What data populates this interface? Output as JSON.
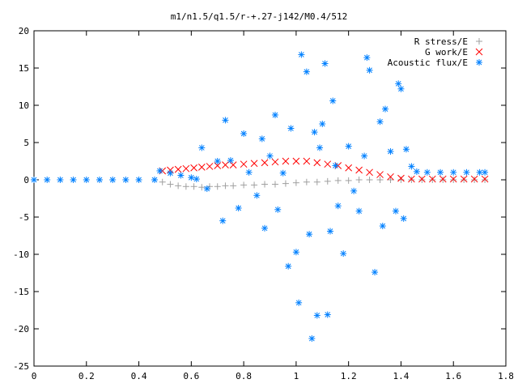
{
  "chart_data": {
    "type": "scatter",
    "title": "m1/n1.5/q1.5/r-+.27-j142/M0.4/512",
    "xlabel": "",
    "ylabel": "",
    "xlim": [
      0,
      1.8
    ],
    "ylim": [
      -25,
      20
    ],
    "x_ticks": [
      "0",
      "0.2",
      "0.4",
      "0.6",
      "0.8",
      "1",
      "1.2",
      "1.4",
      "1.6",
      "1.8"
    ],
    "y_ticks": [
      "20",
      "15",
      "10",
      "5",
      "0",
      "-5",
      "-10",
      "-15",
      "-20",
      "-25"
    ],
    "grid": false,
    "legend_position": "top-right",
    "series": [
      {
        "name": "R stress/E",
        "marker": "plus",
        "color": "#a0a0a0",
        "points": [
          [
            0.49,
            -0.3
          ],
          [
            0.52,
            -0.6
          ],
          [
            0.55,
            -0.8
          ],
          [
            0.58,
            -0.9
          ],
          [
            0.61,
            -0.9
          ],
          [
            0.64,
            -1.0
          ],
          [
            0.67,
            -0.9
          ],
          [
            0.7,
            -0.9
          ],
          [
            0.73,
            -0.8
          ],
          [
            0.76,
            -0.8
          ],
          [
            0.8,
            -0.7
          ],
          [
            0.84,
            -0.7
          ],
          [
            0.88,
            -0.6
          ],
          [
            0.92,
            -0.6
          ],
          [
            0.96,
            -0.5
          ],
          [
            1.0,
            -0.4
          ],
          [
            1.04,
            -0.3
          ],
          [
            1.08,
            -0.3
          ],
          [
            1.12,
            -0.2
          ],
          [
            1.16,
            -0.1
          ],
          [
            1.2,
            -0.1
          ],
          [
            1.24,
            0.0
          ],
          [
            1.28,
            0.0
          ],
          [
            1.32,
            0.0
          ],
          [
            1.36,
            0.0
          ],
          [
            1.4,
            0.0
          ],
          [
            1.44,
            0.0
          ],
          [
            1.48,
            0.0
          ],
          [
            1.52,
            0.0
          ],
          [
            1.56,
            0.0
          ],
          [
            1.6,
            0.0
          ],
          [
            1.64,
            0.0
          ],
          [
            1.68,
            0.0
          ],
          [
            1.72,
            0.0
          ]
        ]
      },
      {
        "name": "G work/E",
        "marker": "cross",
        "color": "#ff0000",
        "points": [
          [
            0.49,
            1.2
          ],
          [
            0.52,
            1.3
          ],
          [
            0.55,
            1.4
          ],
          [
            0.58,
            1.5
          ],
          [
            0.61,
            1.6
          ],
          [
            0.64,
            1.7
          ],
          [
            0.67,
            1.8
          ],
          [
            0.7,
            1.9
          ],
          [
            0.73,
            2.0
          ],
          [
            0.76,
            2.0
          ],
          [
            0.8,
            2.1
          ],
          [
            0.84,
            2.2
          ],
          [
            0.88,
            2.3
          ],
          [
            0.92,
            2.4
          ],
          [
            0.96,
            2.5
          ],
          [
            1.0,
            2.5
          ],
          [
            1.04,
            2.5
          ],
          [
            1.08,
            2.3
          ],
          [
            1.12,
            2.1
          ],
          [
            1.16,
            1.9
          ],
          [
            1.2,
            1.6
          ],
          [
            1.24,
            1.3
          ],
          [
            1.28,
            1.0
          ],
          [
            1.32,
            0.7
          ],
          [
            1.36,
            0.4
          ],
          [
            1.4,
            0.2
          ],
          [
            1.44,
            0.1
          ],
          [
            1.48,
            0.1
          ],
          [
            1.52,
            0.1
          ],
          [
            1.56,
            0.1
          ],
          [
            1.6,
            0.1
          ],
          [
            1.64,
            0.1
          ],
          [
            1.68,
            0.1
          ],
          [
            1.72,
            0.1
          ]
        ]
      },
      {
        "name": "Acoustic flux/E",
        "marker": "star",
        "color": "#0080ff",
        "points": [
          [
            0.0,
            0.0
          ],
          [
            0.05,
            0.0
          ],
          [
            0.1,
            0.0
          ],
          [
            0.15,
            0.0
          ],
          [
            0.2,
            0.0
          ],
          [
            0.25,
            0.0
          ],
          [
            0.3,
            0.0
          ],
          [
            0.35,
            0.0
          ],
          [
            0.4,
            0.0
          ],
          [
            0.46,
            0.0
          ],
          [
            0.48,
            1.2
          ],
          [
            0.52,
            0.9
          ],
          [
            0.56,
            0.6
          ],
          [
            0.6,
            0.3
          ],
          [
            0.62,
            0.1
          ],
          [
            0.64,
            4.3
          ],
          [
            0.66,
            -1.2
          ],
          [
            0.7,
            2.5
          ],
          [
            0.72,
            -5.5
          ],
          [
            0.73,
            8.0
          ],
          [
            0.75,
            2.6
          ],
          [
            0.78,
            -3.8
          ],
          [
            0.8,
            6.2
          ],
          [
            0.82,
            1.0
          ],
          [
            0.85,
            -2.1
          ],
          [
            0.87,
            5.5
          ],
          [
            0.88,
            -6.5
          ],
          [
            0.9,
            3.2
          ],
          [
            0.92,
            8.7
          ],
          [
            0.93,
            -4.0
          ],
          [
            0.95,
            0.9
          ],
          [
            0.97,
            -11.6
          ],
          [
            0.98,
            6.9
          ],
          [
            1.0,
            -9.7
          ],
          [
            1.01,
            -16.5
          ],
          [
            1.02,
            16.8
          ],
          [
            1.04,
            14.5
          ],
          [
            1.05,
            -7.3
          ],
          [
            1.06,
            -21.3
          ],
          [
            1.07,
            6.4
          ],
          [
            1.08,
            -18.2
          ],
          [
            1.09,
            4.3
          ],
          [
            1.1,
            7.5
          ],
          [
            1.11,
            15.6
          ],
          [
            1.12,
            -18.1
          ],
          [
            1.13,
            -6.9
          ],
          [
            1.14,
            10.6
          ],
          [
            1.15,
            1.9
          ],
          [
            1.16,
            -3.5
          ],
          [
            1.18,
            -9.9
          ],
          [
            1.2,
            4.5
          ],
          [
            1.22,
            -1.5
          ],
          [
            1.24,
            -4.2
          ],
          [
            1.26,
            3.2
          ],
          [
            1.27,
            16.4
          ],
          [
            1.28,
            14.7
          ],
          [
            1.3,
            -12.4
          ],
          [
            1.32,
            7.8
          ],
          [
            1.33,
            -6.2
          ],
          [
            1.34,
            9.5
          ],
          [
            1.36,
            3.8
          ],
          [
            1.38,
            -4.2
          ],
          [
            1.39,
            12.9
          ],
          [
            1.4,
            12.2
          ],
          [
            1.41,
            -5.2
          ],
          [
            1.42,
            4.1
          ],
          [
            1.44,
            1.8
          ],
          [
            1.46,
            1.1
          ],
          [
            1.5,
            1.0
          ],
          [
            1.55,
            1.0
          ],
          [
            1.6,
            1.0
          ],
          [
            1.65,
            1.0
          ],
          [
            1.7,
            1.0
          ],
          [
            1.72,
            1.0
          ]
        ]
      }
    ]
  }
}
